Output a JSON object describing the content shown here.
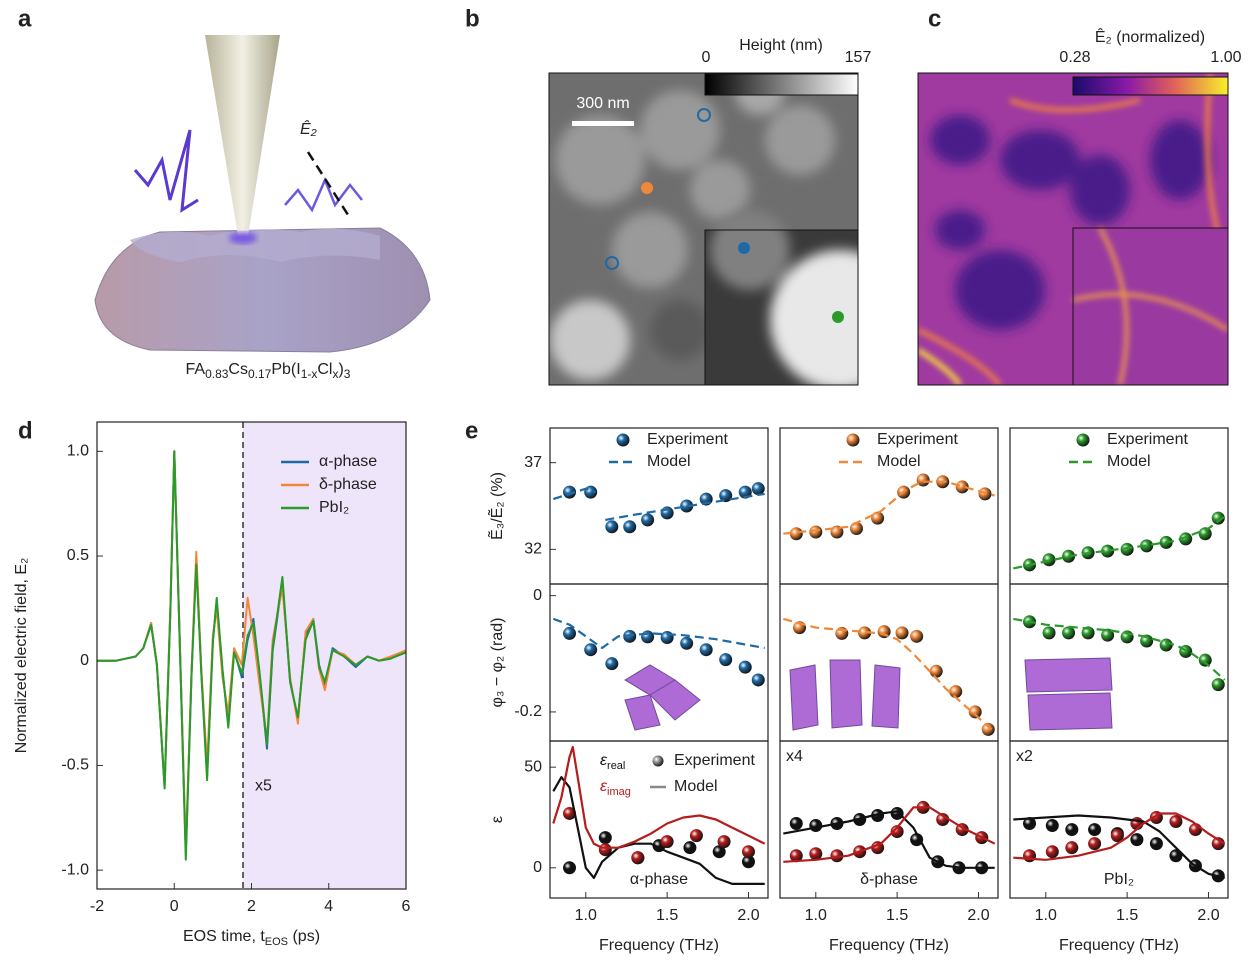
{
  "panel_labels": [
    "a",
    "b",
    "c",
    "d",
    "e"
  ],
  "panel_a": {
    "formula": [
      "FA",
      "0.83",
      "Cs",
      "0.17",
      "Pb(I",
      "1-x",
      "Cl",
      "x",
      ")",
      "3"
    ],
    "field_label": "Ê₂"
  },
  "panel_b": {
    "colorbar_title": "Height (nm)",
    "colorbar_min": 0,
    "colorbar_max": 157,
    "scale_bar": "300 nm"
  },
  "panel_c": {
    "colorbar_title": "Ê₂ (normalized)",
    "colorbar_min": 0.28,
    "colorbar_max": {
      "value": 1,
      "label": "1.00"
    }
  },
  "chart_data": [
    {
      "type": "line",
      "xlabel": [
        "EOS time, t",
        "EOS",
        " (ps)"
      ],
      "ylabel": "Normalized electric field, E₂",
      "xlim": [
        -2,
        6
      ],
      "ylim": [
        -1.09,
        1.14
      ],
      "xticks": [
        -2,
        0,
        2,
        4,
        6
      ],
      "yticks": [
        {
          "value": -1,
          "label": "-1.0"
        },
        -0.5,
        0,
        0.5,
        {
          "value": 1,
          "label": "1.0"
        }
      ],
      "vline": 1.78,
      "annotations": [
        "x5"
      ],
      "legend": "upper right",
      "x": [
        -2,
        -1.5,
        -1,
        -0.8,
        -0.6,
        -0.45,
        -0.25,
        -0.1,
        0,
        0.15,
        0.3,
        0.45,
        0.57,
        0.7,
        0.85,
        1,
        1.1,
        1.25,
        1.4,
        1.55,
        1.75,
        1.9,
        2.05,
        2.2,
        2.4,
        2.55,
        2.8,
        3,
        3.2,
        3.4,
        3.6,
        3.75,
        3.9,
        4.1,
        4.4,
        4.7,
        5,
        5.3,
        5.6,
        6
      ],
      "series": [
        {
          "name": "α-phase",
          "color": "#1f6aa5",
          "mode": "line",
          "values": [
            0,
            0,
            0.02,
            0.06,
            0.18,
            -0.02,
            -0.6,
            0.25,
            1.0,
            0.05,
            -0.92,
            -0.05,
            0.48,
            -0.05,
            -0.55,
            0.1,
            0.28,
            -0.05,
            -0.3,
            0.05,
            -0.08,
            0.1,
            0.2,
            -0.05,
            -0.42,
            0.05,
            0.38,
            -0.1,
            -0.28,
            0.12,
            0.2,
            -0.02,
            -0.12,
            0.06,
            0.02,
            -0.03,
            0.02,
            0,
            0.01,
            0.05
          ]
        },
        {
          "name": "δ-phase",
          "color": "#f0883a",
          "mode": "line",
          "values": [
            0,
            0,
            0.02,
            0.06,
            0.18,
            -0.02,
            -0.59,
            0.26,
            1.0,
            0.06,
            -0.9,
            -0.04,
            0.52,
            -0.04,
            -0.5,
            0.12,
            0.25,
            -0.08,
            -0.25,
            0.06,
            -0.02,
            0.3,
            0.12,
            -0.1,
            -0.38,
            0.1,
            0.35,
            -0.08,
            -0.3,
            0.14,
            0.2,
            -0.04,
            -0.14,
            0.05,
            0.03,
            -0.02,
            0.02,
            0,
            0.02,
            0.05
          ]
        },
        {
          "name": "PbI₂",
          "color": "#2a9a2a",
          "mode": "line",
          "values": [
            0,
            0,
            0.02,
            0.06,
            0.17,
            -0.02,
            -0.61,
            0.24,
            1.0,
            0.04,
            -0.95,
            -0.06,
            0.46,
            -0.06,
            -0.57,
            0.09,
            0.3,
            -0.04,
            -0.32,
            0.04,
            -0.06,
            0.12,
            0.18,
            -0.04,
            -0.4,
            0.06,
            0.4,
            -0.1,
            -0.27,
            0.1,
            0.19,
            -0.03,
            -0.1,
            0.05,
            0.02,
            -0.02,
            0.02,
            0,
            0.01,
            0.04
          ]
        }
      ]
    },
    {
      "type": "line",
      "ylabel": "Ẽ₃/Ẽ₂ (%)",
      "xlim": [
        0.78,
        2.12
      ],
      "ylim": [
        30,
        39
      ],
      "yticks": [
        32,
        37
      ],
      "legend": "upper center",
      "series": [
        {
          "name": "Experiment",
          "color": "#1f6aa5",
          "mode": "markers",
          "x": [
            0.9,
            1.03,
            1.16,
            1.27,
            1.38,
            1.5,
            1.62,
            1.74,
            1.86,
            1.98,
            2.06
          ],
          "values": [
            35.3,
            35.3,
            33.3,
            33.3,
            33.7,
            34.1,
            34.5,
            34.9,
            35.1,
            35.3,
            35.5
          ]
        },
        {
          "name": "Model",
          "color": "#1f6aa5",
          "mode": "dashed",
          "x": [
            0.8,
            0.9,
            1.0,
            1.06,
            1.07,
            1.12,
            1.3,
            1.5,
            1.7,
            1.9,
            2.1
          ],
          "values": [
            34.9,
            35.2,
            35.5,
            35.3,
            null,
            33.7,
            34.0,
            34.3,
            34.6,
            34.9,
            35.2
          ]
        }
      ]
    },
    {
      "type": "line",
      "xlim": [
        0.78,
        2.12
      ],
      "ylim": [
        30,
        39
      ],
      "legend": "upper center",
      "series": [
        {
          "name": "Experiment",
          "color": "#f0883a",
          "mode": "markers",
          "x": [
            0.88,
            1.0,
            1.13,
            1.25,
            1.38,
            1.54,
            1.66,
            1.78,
            1.9,
            2.04
          ],
          "values": [
            32.9,
            33.0,
            33.0,
            33.2,
            33.8,
            35.3,
            36.0,
            35.9,
            35.6,
            35.2
          ]
        },
        {
          "name": "Model",
          "color": "#f0883a",
          "mode": "dashed",
          "x": [
            0.8,
            1.0,
            1.2,
            1.4,
            1.55,
            1.65,
            1.8,
            1.95,
            2.1
          ],
          "values": [
            32.9,
            33.1,
            33.3,
            34.2,
            35.4,
            35.9,
            35.9,
            35.5,
            35.1
          ]
        }
      ]
    },
    {
      "type": "line",
      "xlim": [
        0.78,
        2.12
      ],
      "ylim": [
        30,
        39
      ],
      "legend": "upper center",
      "series": [
        {
          "name": "Experiment",
          "color": "#2a9a2a",
          "mode": "markers",
          "x": [
            0.9,
            1.02,
            1.14,
            1.26,
            1.38,
            1.5,
            1.62,
            1.74,
            1.86,
            1.98,
            2.06
          ],
          "values": [
            31.1,
            31.4,
            31.6,
            31.8,
            31.9,
            32.0,
            32.2,
            32.4,
            32.6,
            32.9,
            33.8
          ]
        },
        {
          "name": "Model",
          "color": "#2a9a2a",
          "mode": "dashed",
          "x": [
            0.8,
            1.0,
            1.2,
            1.4,
            1.6,
            1.8,
            2.0,
            2.1
          ],
          "values": [
            30.9,
            31.3,
            31.7,
            31.95,
            32.2,
            32.5,
            33.2,
            33.9
          ]
        }
      ]
    },
    {
      "type": "line",
      "ylabel": "φ₃ − φ₂ (rad)",
      "xlim": [
        0.78,
        2.12
      ],
      "ylim": [
        -0.25,
        0.02
      ],
      "yticks": [
        -0.2,
        0
      ],
      "series": [
        {
          "color": "#1f6aa5",
          "mode": "markers",
          "x": [
            0.9,
            1.03,
            1.16,
            1.27,
            1.38,
            1.5,
            1.62,
            1.74,
            1.86,
            1.98,
            2.06
          ],
          "values": [
            -0.065,
            -0.093,
            -0.117,
            -0.07,
            -0.071,
            -0.072,
            -0.082,
            -0.093,
            -0.11,
            -0.123,
            -0.145
          ]
        },
        {
          "color": "#1f6aa5",
          "mode": "dashed",
          "x": [
            0.8,
            0.9,
            1.0,
            1.1,
            1.2,
            1.4,
            1.6,
            1.8,
            2.0,
            2.1
          ],
          "values": [
            -0.04,
            -0.05,
            -0.07,
            -0.09,
            -0.07,
            -0.065,
            -0.068,
            -0.075,
            -0.085,
            -0.09
          ]
        }
      ]
    },
    {
      "type": "line",
      "xlim": [
        0.78,
        2.12
      ],
      "ylim": [
        -0.25,
        0.02
      ],
      "series": [
        {
          "color": "#f0883a",
          "mode": "markers",
          "x": [
            0.9,
            1.16,
            1.3,
            1.42,
            1.53,
            1.62,
            1.74,
            1.86,
            1.98,
            2.06
          ],
          "values": [
            -0.055,
            -0.065,
            -0.064,
            -0.062,
            -0.064,
            -0.07,
            -0.13,
            -0.165,
            -0.2,
            -0.23
          ]
        },
        {
          "color": "#f0883a",
          "mode": "dashed",
          "x": [
            0.8,
            1.0,
            1.2,
            1.4,
            1.5,
            1.6,
            1.7,
            1.8,
            1.9,
            2.0,
            2.1
          ],
          "values": [
            -0.04,
            -0.055,
            -0.06,
            -0.065,
            -0.075,
            -0.1,
            -0.13,
            -0.16,
            -0.185,
            -0.21,
            -0.235
          ]
        }
      ]
    },
    {
      "type": "line",
      "xlim": [
        0.78,
        2.12
      ],
      "ylim": [
        -0.25,
        0.02
      ],
      "series": [
        {
          "color": "#2a9a2a",
          "mode": "markers",
          "x": [
            0.9,
            1.02,
            1.14,
            1.26,
            1.38,
            1.5,
            1.62,
            1.74,
            1.86,
            1.98,
            2.06
          ],
          "values": [
            -0.045,
            -0.064,
            -0.064,
            -0.064,
            -0.068,
            -0.071,
            -0.078,
            -0.085,
            -0.096,
            -0.111,
            -0.153
          ]
        },
        {
          "color": "#2a9a2a",
          "mode": "dashed",
          "x": [
            0.8,
            1.0,
            1.2,
            1.4,
            1.6,
            1.8,
            1.9,
            2.0,
            2.1
          ],
          "values": [
            -0.04,
            -0.05,
            -0.055,
            -0.06,
            -0.07,
            -0.085,
            -0.1,
            -0.12,
            -0.145
          ]
        }
      ]
    },
    {
      "type": "line",
      "ylabel": "ε",
      "xlabel": "Frequency (THz)",
      "xlim": [
        0.78,
        2.12
      ],
      "ylim": [
        -15,
        63
      ],
      "yticks": [
        0,
        50
      ],
      "xticks": [
        {
          "value": 1,
          "label": "1.0"
        },
        1.5,
        {
          "value": 2,
          "label": "2.0"
        }
      ],
      "label": "α-phase",
      "legend_entries": {
        "colors": [
          {
            "label": [
              "ε",
              "real"
            ],
            "color": "#111111"
          },
          {
            "label": [
              "ε",
              "imag"
            ],
            "color": "#b51c1c"
          }
        ],
        "styles": [
          "Experiment",
          "Model"
        ]
      },
      "series": [
        {
          "color": "#111111",
          "mode": "markers",
          "x": [
            0.9,
            1.12,
            1.32,
            1.45,
            1.64,
            1.82,
            2.0
          ],
          "values": [
            0,
            15,
            5,
            11,
            10,
            8,
            3
          ]
        },
        {
          "color": "#b51c1c",
          "mode": "markers",
          "x": [
            0.9,
            1.12,
            1.32,
            1.5,
            1.68,
            1.85,
            2.0
          ],
          "values": [
            27,
            9,
            5,
            13,
            16,
            13,
            8
          ]
        },
        {
          "color": "#111111",
          "mode": "line",
          "x": [
            0.8,
            0.85,
            0.9,
            0.95,
            1.0,
            1.05,
            1.1,
            1.2,
            1.3,
            1.4,
            1.5,
            1.6,
            1.7,
            1.8,
            1.9,
            2.0,
            2.1
          ],
          "values": [
            38,
            45,
            40,
            20,
            0,
            -5,
            3,
            10,
            12,
            12,
            8,
            5,
            2,
            -5,
            -8,
            -8,
            -8
          ]
        },
        {
          "color": "#b51c1c",
          "mode": "line",
          "x": [
            0.8,
            0.85,
            0.9,
            0.92,
            0.95,
            1.0,
            1.05,
            1.1,
            1.2,
            1.3,
            1.4,
            1.5,
            1.6,
            1.7,
            1.8,
            1.9,
            2.0,
            2.1
          ],
          "values": [
            22,
            35,
            55,
            60,
            45,
            20,
            12,
            10,
            10,
            13,
            17,
            22,
            25,
            26,
            24,
            20,
            16,
            12
          ]
        }
      ]
    },
    {
      "type": "line",
      "xlabel": "Frequency (THz)",
      "xlim": [
        0.78,
        2.12
      ],
      "ylim": [
        -15,
        63
      ],
      "xticks": [
        {
          "value": 1,
          "label": "1.0"
        },
        1.5,
        {
          "value": 2,
          "label": "2.0"
        }
      ],
      "label": "δ-phase",
      "scale_note": "x4",
      "series": [
        {
          "color": "#111111",
          "mode": "markers",
          "x": [
            0.88,
            1.0,
            1.13,
            1.27,
            1.38,
            1.5,
            1.62,
            1.75,
            1.88,
            2.02
          ],
          "values": [
            22,
            21,
            22,
            24,
            26,
            27,
            14,
            3,
            0,
            0
          ]
        },
        {
          "color": "#b51c1c",
          "mode": "markers",
          "x": [
            0.88,
            1.0,
            1.13,
            1.27,
            1.38,
            1.5,
            1.66,
            1.78,
            1.9,
            2.02
          ],
          "values": [
            6,
            7,
            6,
            8,
            10,
            18,
            30,
            24,
            19,
            15
          ]
        },
        {
          "color": "#111111",
          "mode": "line",
          "x": [
            0.8,
            1.0,
            1.2,
            1.4,
            1.5,
            1.6,
            1.7,
            1.8,
            1.9,
            2.0,
            2.1
          ],
          "values": [
            17,
            20,
            23,
            27,
            28,
            20,
            5,
            1,
            0,
            0,
            0
          ]
        },
        {
          "color": "#b51c1c",
          "mode": "line",
          "x": [
            0.8,
            1.0,
            1.2,
            1.4,
            1.5,
            1.6,
            1.7,
            1.8,
            1.9,
            2.0,
            2.1
          ],
          "values": [
            3,
            4,
            6,
            12,
            20,
            30,
            30,
            25,
            20,
            16,
            12
          ]
        }
      ]
    },
    {
      "type": "line",
      "xlabel": "Frequency (THz)",
      "xlim": [
        0.78,
        2.12
      ],
      "ylim": [
        -15,
        63
      ],
      "xticks": [
        {
          "value": 1,
          "label": "1.0"
        },
        1.5,
        {
          "value": 2,
          "label": "2.0"
        }
      ],
      "label": "PbI₂",
      "scale_note": "x2",
      "series": [
        {
          "color": "#111111",
          "mode": "markers",
          "x": [
            0.9,
            1.04,
            1.16,
            1.3,
            1.44,
            1.56,
            1.68,
            1.8,
            1.92,
            2.06
          ],
          "values": [
            22,
            21,
            19,
            19,
            17,
            14,
            12,
            6,
            1,
            -4
          ]
        },
        {
          "color": "#b51c1c",
          "mode": "markers",
          "x": [
            0.9,
            1.04,
            1.16,
            1.3,
            1.44,
            1.56,
            1.68,
            1.8,
            1.92,
            2.06
          ],
          "values": [
            6,
            8,
            10,
            12,
            16,
            22,
            25,
            23,
            19,
            12
          ]
        },
        {
          "color": "#111111",
          "mode": "line",
          "x": [
            0.8,
            1.0,
            1.2,
            1.4,
            1.5,
            1.6,
            1.7,
            1.8,
            1.9,
            2.0,
            2.1
          ],
          "values": [
            24,
            25,
            26,
            25,
            24,
            23,
            18,
            10,
            2,
            -3,
            -5
          ]
        },
        {
          "color": "#b51c1c",
          "mode": "line",
          "x": [
            0.8,
            1.0,
            1.2,
            1.4,
            1.5,
            1.6,
            1.7,
            1.8,
            1.9,
            2.0,
            2.1
          ],
          "values": [
            5,
            4,
            6,
            10,
            15,
            22,
            27,
            27,
            23,
            17,
            12
          ]
        }
      ]
    }
  ]
}
